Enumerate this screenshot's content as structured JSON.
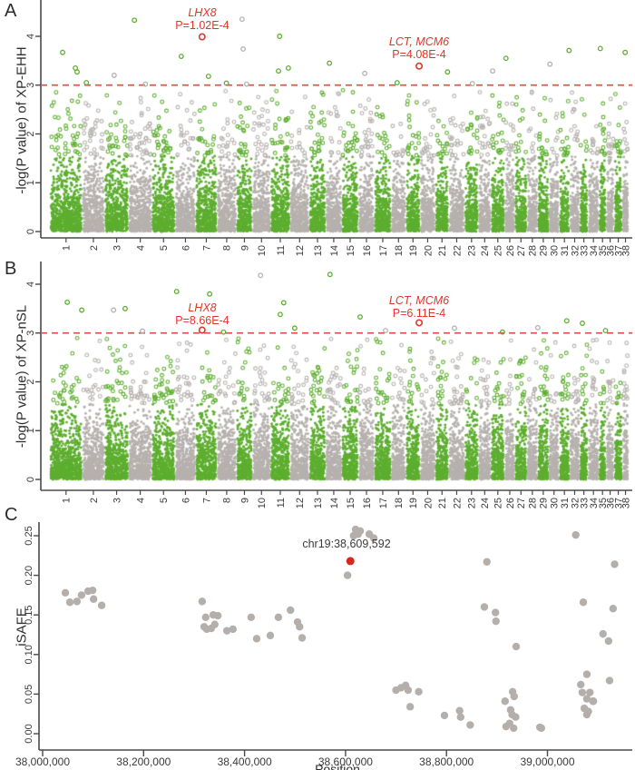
{
  "colors": {
    "green": "#5dae2f",
    "gray": "#b6b1ae",
    "scatter_gray": "#b5afac",
    "red": "#e0352a",
    "red_dash": "#e4564a",
    "highlight_red": "#d7281d",
    "axis_text": "#3a3a3a",
    "axis_line": "#4a4a4a"
  },
  "chart_data": [
    {
      "id": "A",
      "type": "scatter",
      "subtype": "manhattan",
      "panel_label": "A",
      "ylabel": "-log(P value) of XP-EHH",
      "xlabel": "",
      "ytick_labels": [
        "0",
        "1",
        "2",
        "3",
        "4"
      ],
      "yticks": [
        0,
        1,
        2,
        3,
        4
      ],
      "ylim": [
        0,
        4.6
      ],
      "threshold": 3,
      "categories": [
        "1",
        "2",
        "3",
        "4",
        "5",
        "6",
        "7",
        "8",
        "9",
        "10",
        "11",
        "12",
        "13",
        "14",
        "15",
        "16",
        "17",
        "18",
        "19",
        "20",
        "21",
        "22",
        "23",
        "24",
        "25",
        "26",
        "27",
        "28",
        "29",
        "30",
        "31",
        "32",
        "33",
        "34",
        "35",
        "36",
        "37",
        "38"
      ],
      "chrom_rel_widths": [
        123,
        85,
        92,
        88,
        89,
        78,
        81,
        74,
        61,
        69,
        74,
        73,
        63,
        61,
        64,
        60,
        64,
        56,
        54,
        58,
        51,
        61,
        52,
        48,
        52,
        39,
        46,
        41,
        42,
        40,
        39,
        39,
        31,
        42,
        27,
        31,
        31,
        24
      ],
      "alternating_colors": [
        "green",
        "gray"
      ],
      "annotations": [
        {
          "gene": "LHX8",
          "p_label": "P=1.02E-4",
          "neglog_p": 3.99,
          "x_frac": 0.263
        },
        {
          "gene": "LCT, MCM6",
          "p_label": "P=4.08E-4",
          "neglog_p": 3.39,
          "x_frac": 0.638
        }
      ],
      "top_points": [
        {
          "x": 0.022,
          "v": 3.67,
          "c": "green"
        },
        {
          "x": 0.044,
          "v": 3.35,
          "c": "green"
        },
        {
          "x": 0.047,
          "v": 3.27,
          "c": "green"
        },
        {
          "x": 0.063,
          "v": 3.05,
          "c": "green"
        },
        {
          "x": 0.111,
          "v": 3.2,
          "c": "gray"
        },
        {
          "x": 0.146,
          "v": 4.33,
          "c": "green"
        },
        {
          "x": 0.165,
          "v": 3.02,
          "c": "gray"
        },
        {
          "x": 0.227,
          "v": 3.59,
          "c": "green"
        },
        {
          "x": 0.274,
          "v": 3.18,
          "c": "green"
        },
        {
          "x": 0.305,
          "v": 3.04,
          "c": "green"
        },
        {
          "x": 0.332,
          "v": 4.35,
          "c": "gray"
        },
        {
          "x": 0.334,
          "v": 3.74,
          "c": "gray"
        },
        {
          "x": 0.34,
          "v": 3.02,
          "c": "gray"
        },
        {
          "x": 0.395,
          "v": 3.29,
          "c": "green"
        },
        {
          "x": 0.397,
          "v": 4.0,
          "c": "green"
        },
        {
          "x": 0.412,
          "v": 3.35,
          "c": "green"
        },
        {
          "x": 0.483,
          "v": 3.45,
          "c": "green"
        },
        {
          "x": 0.544,
          "v": 3.24,
          "c": "gray"
        },
        {
          "x": 0.6,
          "v": 3.05,
          "c": "green"
        },
        {
          "x": 0.687,
          "v": 3.27,
          "c": "green"
        },
        {
          "x": 0.73,
          "v": 3.03,
          "c": "gray"
        },
        {
          "x": 0.765,
          "v": 3.29,
          "c": "gray"
        },
        {
          "x": 0.788,
          "v": 3.55,
          "c": "green"
        },
        {
          "x": 0.864,
          "v": 3.43,
          "c": "gray"
        },
        {
          "x": 0.897,
          "v": 3.71,
          "c": "green"
        },
        {
          "x": 0.951,
          "v": 3.75,
          "c": "green"
        },
        {
          "x": 0.994,
          "v": 3.67,
          "c": "green"
        }
      ]
    },
    {
      "id": "B",
      "type": "scatter",
      "subtype": "manhattan",
      "panel_label": "B",
      "ylabel": "-log(P value) of XP-nSL",
      "xlabel": "",
      "ytick_labels": [
        "0",
        "1",
        "2",
        "3",
        "4"
      ],
      "yticks": [
        0,
        1,
        2,
        3,
        4
      ],
      "ylim": [
        0,
        4.6
      ],
      "threshold": 3,
      "categories": [
        "1",
        "2",
        "3",
        "4",
        "5",
        "6",
        "7",
        "8",
        "9",
        "10",
        "11",
        "12",
        "13",
        "14",
        "15",
        "16",
        "17",
        "18",
        "19",
        "20",
        "21",
        "22",
        "23",
        "24",
        "25",
        "26",
        "27",
        "28",
        "29",
        "30",
        "31",
        "32",
        "33",
        "34",
        "35",
        "36",
        "37",
        "38"
      ],
      "chrom_rel_widths": [
        123,
        85,
        92,
        88,
        89,
        78,
        81,
        74,
        61,
        69,
        74,
        73,
        63,
        61,
        64,
        60,
        64,
        56,
        54,
        58,
        51,
        61,
        52,
        48,
        52,
        39,
        46,
        41,
        42,
        40,
        39,
        39,
        31,
        42,
        27,
        31,
        31,
        24
      ],
      "alternating_colors": [
        "green",
        "gray"
      ],
      "annotations": [
        {
          "gene": "LHX8",
          "p_label": "P=8.66E-4",
          "neglog_p": 3.06,
          "x_frac": 0.263
        },
        {
          "gene": "LCT, MCM6",
          "p_label": "P=6.11E-4",
          "neglog_p": 3.21,
          "x_frac": 0.638
        }
      ],
      "top_points": [
        {
          "x": 0.03,
          "v": 3.63,
          "c": "green"
        },
        {
          "x": 0.055,
          "v": 3.47,
          "c": "green"
        },
        {
          "x": 0.11,
          "v": 3.47,
          "c": "gray"
        },
        {
          "x": 0.13,
          "v": 3.5,
          "c": "green"
        },
        {
          "x": 0.16,
          "v": 3.04,
          "c": "gray"
        },
        {
          "x": 0.219,
          "v": 3.85,
          "c": "green"
        },
        {
          "x": 0.276,
          "v": 3.8,
          "c": "green"
        },
        {
          "x": 0.3,
          "v": 3.02,
          "c": "green"
        },
        {
          "x": 0.364,
          "v": 4.18,
          "c": "gray"
        },
        {
          "x": 0.398,
          "v": 3.38,
          "c": "green"
        },
        {
          "x": 0.404,
          "v": 3.62,
          "c": "green"
        },
        {
          "x": 0.423,
          "v": 3.1,
          "c": "green"
        },
        {
          "x": 0.484,
          "v": 4.2,
          "c": "green"
        },
        {
          "x": 0.536,
          "v": 3.33,
          "c": "green"
        },
        {
          "x": 0.58,
          "v": 3.05,
          "c": "gray"
        },
        {
          "x": 0.699,
          "v": 3.1,
          "c": "gray"
        },
        {
          "x": 0.782,
          "v": 3.02,
          "c": "green"
        },
        {
          "x": 0.843,
          "v": 3.11,
          "c": "gray"
        },
        {
          "x": 0.893,
          "v": 3.25,
          "c": "green"
        },
        {
          "x": 0.92,
          "v": 3.2,
          "c": "green"
        },
        {
          "x": 0.96,
          "v": 3.05,
          "c": "green"
        }
      ]
    },
    {
      "id": "C",
      "type": "scatter",
      "panel_label": "C",
      "ylabel": "iSAFE",
      "xlabel": "Position",
      "xticks": [
        38000000,
        38200000,
        38400000,
        38600000,
        38800000,
        39000000
      ],
      "xtick_labels": [
        "38,000,000",
        "38,200,000",
        "38,400,000",
        "38,600,000",
        "38,800,000",
        "39,000,000"
      ],
      "yticks": [
        0.0,
        0.05,
        0.1,
        0.15,
        0.2,
        0.25
      ],
      "ytick_labels": [
        "0.00",
        "0.05",
        "0.10",
        "0.15",
        "0.20",
        "0.25"
      ],
      "xlim": [
        37980000,
        39170000
      ],
      "ylim": [
        0,
        0.27
      ],
      "highlight": {
        "label": "chr19:38,609,592",
        "x": 38609592,
        "y": 0.218
      },
      "points": [
        [
          38045000,
          0.178
        ],
        [
          38054000,
          0.166
        ],
        [
          38068000,
          0.167
        ],
        [
          38077000,
          0.175
        ],
        [
          38090000,
          0.18
        ],
        [
          38099000,
          0.181
        ],
        [
          38101000,
          0.17
        ],
        [
          38117000,
          0.162
        ],
        [
          38316000,
          0.167
        ],
        [
          38320000,
          0.135
        ],
        [
          38323000,
          0.147
        ],
        [
          38325000,
          0.132
        ],
        [
          38334000,
          0.133
        ],
        [
          38338000,
          0.15
        ],
        [
          38341000,
          0.138
        ],
        [
          38347000,
          0.149
        ],
        [
          38365000,
          0.13
        ],
        [
          38377000,
          0.132
        ],
        [
          38413000,
          0.147
        ],
        [
          38424000,
          0.12
        ],
        [
          38451000,
          0.124
        ],
        [
          38467000,
          0.147
        ],
        [
          38491000,
          0.156
        ],
        [
          38505000,
          0.141
        ],
        [
          38509000,
          0.135
        ],
        [
          38514000,
          0.121
        ],
        [
          38604000,
          0.2
        ],
        [
          38616000,
          0.25
        ],
        [
          38620000,
          0.258
        ],
        [
          38625000,
          0.252
        ],
        [
          38629000,
          0.256
        ],
        [
          38647000,
          0.252
        ],
        [
          38656000,
          0.247
        ],
        [
          38700000,
          0.055
        ],
        [
          38710000,
          0.058
        ],
        [
          38719000,
          0.061
        ],
        [
          38724000,
          0.055
        ],
        [
          38728000,
          0.034
        ],
        [
          38745000,
          0.053
        ],
        [
          38796000,
          0.023
        ],
        [
          38826000,
          0.029
        ],
        [
          38828000,
          0.021
        ],
        [
          38847000,
          0.011
        ],
        [
          38875000,
          0.16
        ],
        [
          38880000,
          0.217
        ],
        [
          38897000,
          0.153
        ],
        [
          38898000,
          0.142
        ],
        [
          38916000,
          0.041
        ],
        [
          38918000,
          0.009
        ],
        [
          38925000,
          0.013
        ],
        [
          38927000,
          0.03
        ],
        [
          38930000,
          0.024
        ],
        [
          38931000,
          0.053
        ],
        [
          38933000,
          0.007
        ],
        [
          38934000,
          0.047
        ],
        [
          38937000,
          0.021
        ],
        [
          38938000,
          0.11
        ],
        [
          38985000,
          0.008
        ],
        [
          38988000,
          0.007
        ],
        [
          39056000,
          0.251
        ],
        [
          39066000,
          0.062
        ],
        [
          39069000,
          0.052
        ],
        [
          39071000,
          0.166
        ],
        [
          39073000,
          0.032
        ],
        [
          39078000,
          0.075
        ],
        [
          39078000,
          0.044
        ],
        [
          39078000,
          0.024
        ],
        [
          39081000,
          0.028
        ],
        [
          39084000,
          0.052
        ],
        [
          39090000,
          0.041
        ],
        [
          39091000,
          0.041
        ],
        [
          39110000,
          0.126
        ],
        [
          39121000,
          0.117
        ],
        [
          39123000,
          0.067
        ],
        [
          39130000,
          0.158
        ],
        [
          39133000,
          0.214
        ]
      ]
    }
  ]
}
